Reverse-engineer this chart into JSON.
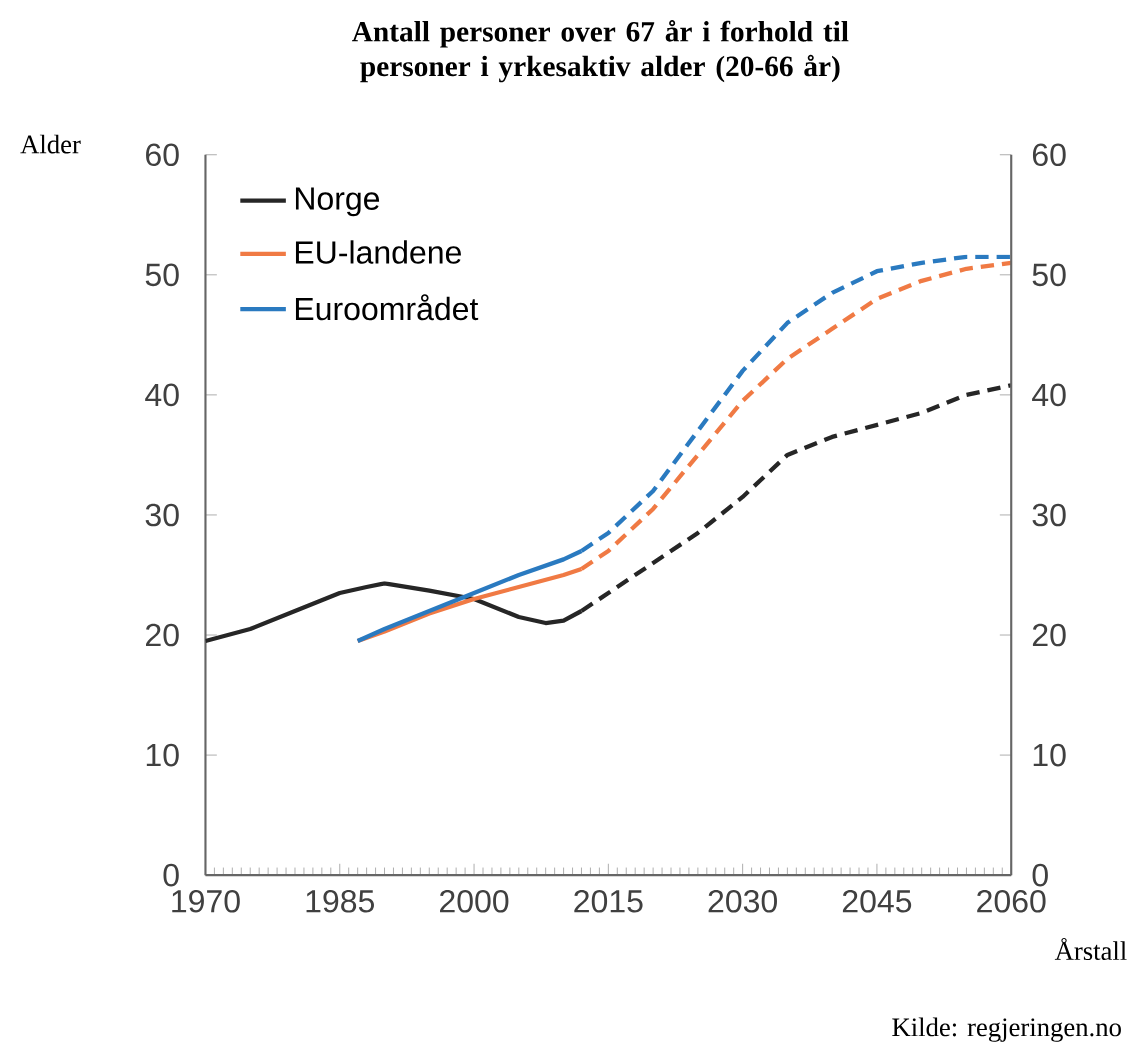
{
  "chart_data": {
    "type": "line",
    "title": "Antall personer over 67 år i forhold til personer i yrkesaktiv alder (20-66 år)",
    "ylabel": "Alder",
    "xlabel": "Årstall",
    "xlim": [
      1970,
      2060
    ],
    "xticks": [
      1970,
      1985,
      2000,
      2015,
      2030,
      2045,
      2060
    ],
    "ylim": [
      0,
      60
    ],
    "yticks": [
      0,
      10,
      20,
      30,
      40,
      50,
      60
    ],
    "y2lim": [
      0,
      60
    ],
    "y2ticks": [
      0,
      10,
      20,
      30,
      40,
      50,
      60
    ],
    "legend": "top left",
    "grid": false,
    "annotations": [
      "Kilde: regjeringen.no"
    ],
    "series": [
      {
        "name": "Norge",
        "color": "#262626",
        "line_style": "solid",
        "x": [
          1970,
          1975,
          1980,
          1985,
          1988,
          1990,
          1995,
          2000,
          2005,
          2008,
          2010,
          2012
        ],
        "values": [
          19.5,
          20.5,
          22,
          23.5,
          24,
          24.3,
          23.7,
          23,
          21.5,
          21,
          21.2,
          22
        ]
      },
      {
        "name": "EU-landene",
        "color": "#f07a44",
        "line_style": "solid",
        "x": [
          1987,
          1990,
          1995,
          2000,
          2005,
          2010,
          2012
        ],
        "values": [
          19.5,
          20.3,
          21.8,
          23,
          24,
          25,
          25.5
        ]
      },
      {
        "name": "Euroområdet",
        "color": "#2a7ac0",
        "line_style": "solid",
        "x": [
          1987,
          1990,
          1995,
          2000,
          2005,
          2010,
          2012
        ],
        "values": [
          19.5,
          20.5,
          22,
          23.5,
          25,
          26.3,
          27
        ]
      },
      {
        "color": "#262626",
        "line_style": "dashed",
        "x": [
          2012,
          2015,
          2020,
          2025,
          2030,
          2035,
          2040,
          2045,
          2050,
          2055,
          2060
        ],
        "values": [
          22,
          23.5,
          26,
          28.5,
          31.5,
          35,
          36.5,
          37.5,
          38.5,
          40,
          40.8
        ]
      },
      {
        "color": "#f07a44",
        "line_style": "dashed",
        "x": [
          2012,
          2015,
          2020,
          2025,
          2030,
          2035,
          2040,
          2045,
          2050,
          2055,
          2060
        ],
        "values": [
          25.5,
          27,
          30.5,
          35,
          39.5,
          43,
          45.5,
          48,
          49.5,
          50.5,
          51
        ]
      },
      {
        "color": "#2a7ac0",
        "line_style": "dashed",
        "x": [
          2012,
          2015,
          2020,
          2025,
          2030,
          2035,
          2040,
          2045,
          2050,
          2055,
          2060
        ],
        "values": [
          27,
          28.5,
          32,
          37,
          42,
          46,
          48.5,
          50.3,
          51,
          51.5,
          51.5
        ]
      }
    ]
  }
}
